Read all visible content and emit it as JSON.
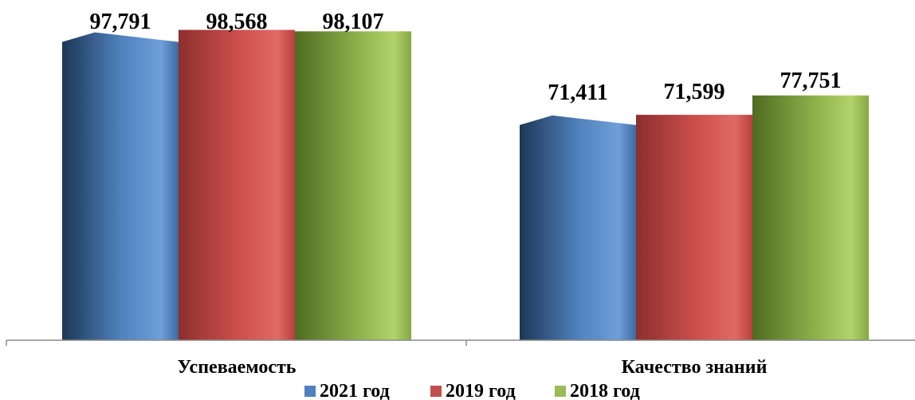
{
  "chart_data": {
    "type": "bar",
    "categories": [
      "Успеваемость",
      "Качество знаний"
    ],
    "series": [
      {
        "name": "2021 год",
        "values": [
          97.791,
          71.411
        ],
        "labels": [
          "97,791",
          "71,411"
        ],
        "color": "#4F81BD"
      },
      {
        "name": "2019 год",
        "values": [
          98.568,
          71.599
        ],
        "labels": [
          "98,568",
          "71,599"
        ],
        "color": "#C0504D"
      },
      {
        "name": "2018 год",
        "values": [
          98.107,
          77.751
        ],
        "labels": [
          "98,107",
          "77,751"
        ],
        "color": "#9BBB59"
      }
    ],
    "ylim": [
      0,
      103
    ],
    "grid": false,
    "legend_position": "bottom"
  }
}
